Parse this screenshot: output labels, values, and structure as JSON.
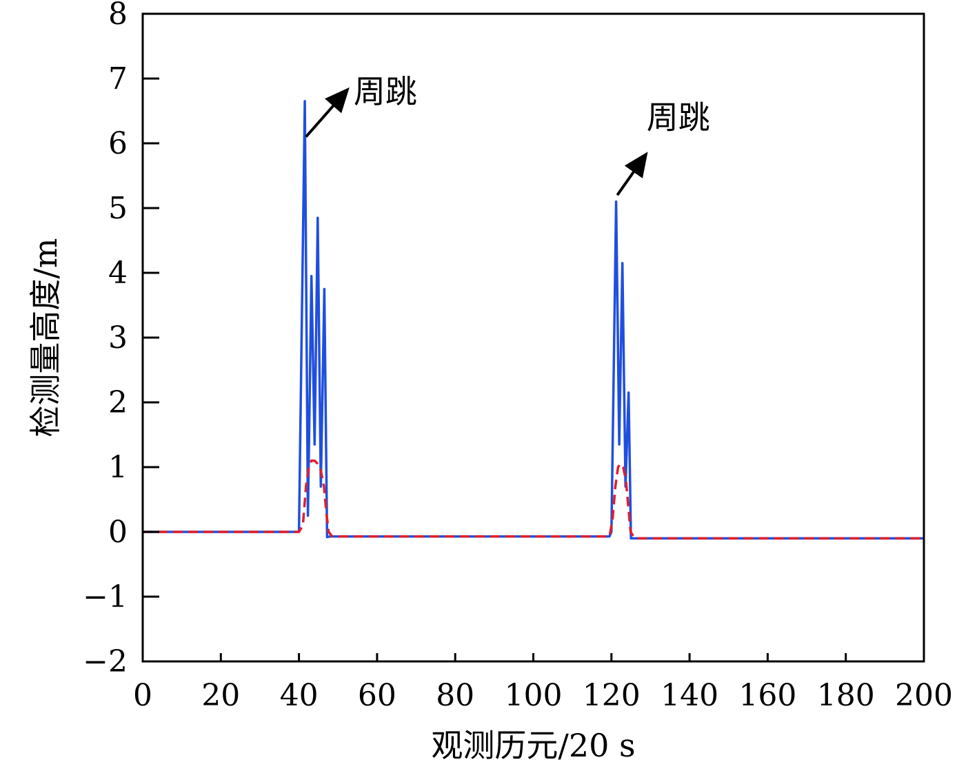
{
  "chart_data": {
    "type": "line",
    "xlabel": "观测历元/20 s",
    "ylabel": "检测量高度/m",
    "xlim": [
      0,
      200
    ],
    "ylim": [
      -2,
      8
    ],
    "xticks": [
      0,
      20,
      40,
      60,
      80,
      100,
      120,
      140,
      160,
      180,
      200
    ],
    "yticks": [
      -2,
      -1,
      0,
      1,
      2,
      3,
      4,
      5,
      6,
      7,
      8
    ],
    "ytick_labels": [
      "−2",
      "−1",
      "0",
      "1",
      "2",
      "3",
      "4",
      "5",
      "6",
      "7",
      "8"
    ],
    "grid": false,
    "legend": "none",
    "series": [
      {
        "color": "#1f4fe0",
        "style": "solid",
        "x": [
          0,
          40,
          41.5,
          42.3,
          43.2,
          44.0,
          44.8,
          45.6,
          46.5,
          47.2,
          48,
          60,
          80,
          100,
          119.5,
          120,
          121.2,
          122.0,
          122.8,
          123.6,
          124.4,
          125.0,
          126,
          140,
          160,
          180,
          200
        ],
        "y": [
          0,
          0,
          6.65,
          0.25,
          3.95,
          1.35,
          4.85,
          0.7,
          3.75,
          -0.08,
          -0.07,
          -0.07,
          -0.07,
          -0.07,
          -0.07,
          0.0,
          5.1,
          1.35,
          4.15,
          0.7,
          2.15,
          -0.1,
          -0.1,
          -0.1,
          -0.1,
          -0.1,
          -0.1
        ]
      },
      {
        "color": "#e0202a",
        "style": "dashed",
        "x": [
          0,
          40,
          41,
          41.8,
          42.5,
          43.2,
          44.0,
          44.8,
          45.6,
          46.4,
          47.0,
          47.6,
          48.5,
          60,
          80,
          100,
          119.5,
          120.3,
          121.0,
          121.7,
          122.3,
          123.0,
          123.7,
          124.3,
          124.9,
          126,
          140,
          160,
          180,
          200
        ],
        "y": [
          0,
          0,
          0.1,
          0.7,
          1.0,
          1.1,
          1.1,
          1.05,
          0.95,
          0.7,
          0.3,
          0.0,
          -0.07,
          -0.07,
          -0.07,
          -0.07,
          -0.07,
          0.2,
          0.7,
          1.0,
          1.05,
          1.0,
          0.8,
          0.4,
          0.0,
          -0.1,
          -0.1,
          -0.1,
          -0.1,
          -0.1
        ]
      }
    ],
    "annotations": [
      {
        "text": "周跳",
        "arrow_from": [
          41.8,
          6.1
        ],
        "arrow_to": [
          52,
          6.8
        ],
        "text_at": [
          54,
          6.8
        ]
      },
      {
        "text": "周跳",
        "arrow_from": [
          121.5,
          5.2
        ],
        "arrow_to": [
          128.5,
          5.8
        ],
        "text_at": [
          129,
          6.4
        ]
      }
    ]
  }
}
